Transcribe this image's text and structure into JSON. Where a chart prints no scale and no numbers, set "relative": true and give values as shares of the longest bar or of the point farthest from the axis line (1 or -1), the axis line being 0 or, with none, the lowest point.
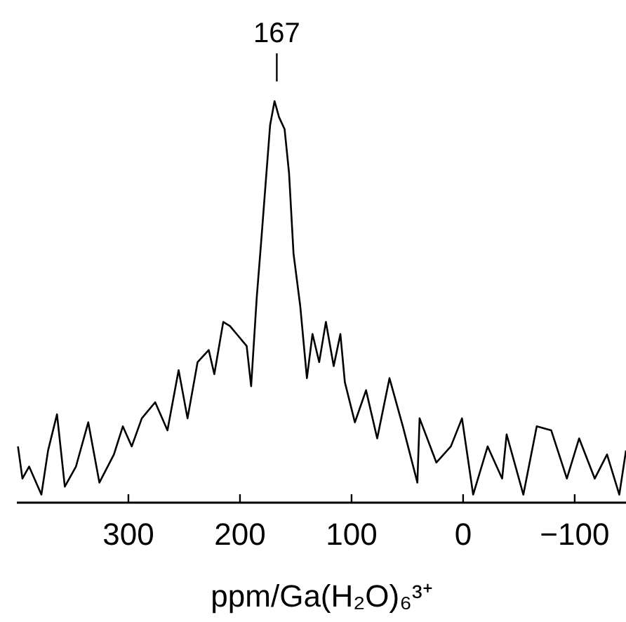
{
  "chart_data": {
    "type": "line",
    "relative": true,
    "xlabel": "ppm/Ga(H₂O)₆³⁺",
    "xlim": [
      400,
      -146
    ],
    "xticks": [
      300,
      200,
      100,
      0,
      {
        "value": -100,
        "label": "−100"
      }
    ],
    "annotations": [
      {
        "text": "167",
        "x": 167,
        "y": 1
      }
    ],
    "grid": false,
    "line_style": "solid",
    "series": [
      {
        "color": "#000000",
        "x": [
          399,
          395,
          389,
          378,
          372,
          364,
          357,
          347,
          336,
          326,
          313,
          305,
          297,
          288,
          276,
          265,
          255,
          247,
          238,
          228,
          223,
          215,
          209,
          203,
          194,
          190,
          185,
          181,
          173,
          169,
          165,
          160,
          156,
          152,
          146,
          140,
          135,
          129,
          123,
          116,
          110,
          106,
          97,
          87,
          77,
          66,
          54,
          41,
          39,
          24,
          11,
          1,
          -9,
          -22,
          -35,
          -39,
          -54,
          -66,
          -79,
          -93,
          -104,
          -118,
          -129,
          -140,
          -146
        ],
        "values": [
          0.14,
          0.06,
          0.09,
          0.02,
          0.13,
          0.22,
          0.04,
          0.09,
          0.2,
          0.05,
          0.12,
          0.19,
          0.14,
          0.21,
          0.25,
          0.18,
          0.33,
          0.21,
          0.35,
          0.38,
          0.32,
          0.45,
          0.44,
          0.42,
          0.39,
          0.29,
          0.51,
          0.65,
          0.94,
          1.0,
          0.96,
          0.93,
          0.82,
          0.62,
          0.49,
          0.31,
          0.42,
          0.35,
          0.45,
          0.34,
          0.42,
          0.3,
          0.2,
          0.28,
          0.16,
          0.31,
          0.19,
          0.05,
          0.21,
          0.1,
          0.14,
          0.21,
          0.02,
          0.14,
          0.06,
          0.17,
          0.02,
          0.19,
          0.18,
          0.06,
          0.16,
          0.06,
          0.12,
          0.02,
          0.13
        ]
      }
    ]
  }
}
